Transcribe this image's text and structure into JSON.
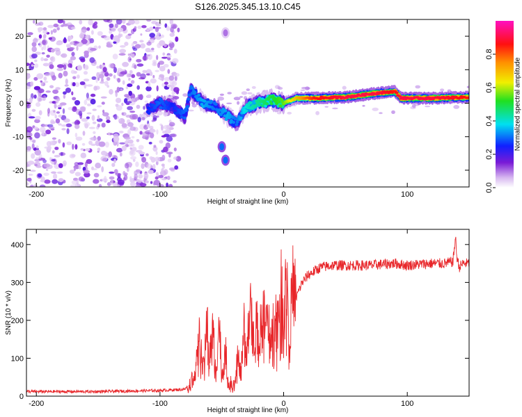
{
  "title": "S126.2025.345.13.10.C45",
  "colors": {
    "snr_line": "#e8262a",
    "axis": "#000000",
    "background": "#ffffff"
  },
  "chart_data": [
    {
      "type": "heatmap",
      "name": "spectrogram",
      "xlabel": "Height of straight line (km)",
      "ylabel": "Frequency (Hz)",
      "xlim": [
        -208,
        150
      ],
      "ylim": [
        -25,
        25
      ],
      "xticks": [
        -200,
        -100,
        0,
        100
      ],
      "yticks": [
        -20,
        -10,
        0,
        10,
        20
      ],
      "colorbar": {
        "label": "Normalized spectral amplitude",
        "range": [
          0,
          1
        ],
        "ticks": [
          0.0,
          0.2,
          0.4,
          0.6,
          0.8
        ],
        "tick_labels": [
          "0.0",
          "0.2",
          "0.4",
          "0.6",
          "0.8"
        ],
        "colormap": "rainbow (white-violet-blue-cyan-green-yellow-orange-red-pink)"
      },
      "ridge": [
        {
          "x": -110,
          "f": -2,
          "amp": 0.25
        },
        {
          "x": -100,
          "f": 0,
          "amp": 0.3
        },
        {
          "x": -90,
          "f": -1,
          "amp": 0.25
        },
        {
          "x": -80,
          "f": -4,
          "amp": 0.3
        },
        {
          "x": -75,
          "f": 4,
          "amp": 0.3
        },
        {
          "x": -65,
          "f": 0,
          "amp": 0.35
        },
        {
          "x": -55,
          "f": -1,
          "amp": 0.3
        },
        {
          "x": -45,
          "f": -4,
          "amp": 0.35
        },
        {
          "x": -38,
          "f": -6,
          "amp": 0.3
        },
        {
          "x": -30,
          "f": -1,
          "amp": 0.4
        },
        {
          "x": -20,
          "f": 0,
          "amp": 0.45
        },
        {
          "x": -10,
          "f": 1,
          "amp": 0.5
        },
        {
          "x": 0,
          "f": 0,
          "amp": 0.55
        },
        {
          "x": 10,
          "f": 1.5,
          "amp": 0.7
        },
        {
          "x": 25,
          "f": 1.5,
          "amp": 0.85
        },
        {
          "x": 50,
          "f": 1.8,
          "amp": 0.9
        },
        {
          "x": 75,
          "f": 3,
          "amp": 0.9
        },
        {
          "x": 90,
          "f": 3.5,
          "amp": 0.85
        },
        {
          "x": 95,
          "f": 1.5,
          "amp": 0.9
        },
        {
          "x": 120,
          "f": 1.5,
          "amp": 0.9
        },
        {
          "x": 150,
          "f": 1.8,
          "amp": 0.85
        }
      ],
      "isolated_blobs": [
        {
          "x": -50,
          "f": -13,
          "amp": 0.3
        },
        {
          "x": -47,
          "f": -17,
          "amp": 0.3
        },
        {
          "x": -47,
          "f": 21,
          "amp": 0.1
        }
      ],
      "noise_region_x": [
        -208,
        -85
      ]
    },
    {
      "type": "line",
      "name": "snr",
      "xlabel": "Height of straight line (km)",
      "ylabel": "SNR (10 * v/v)",
      "xlim": [
        -208,
        150
      ],
      "ylim": [
        0,
        440
      ],
      "xticks": [
        -200,
        -100,
        0,
        100
      ],
      "yticks": [
        0,
        100,
        200,
        300,
        400
      ],
      "series": [
        {
          "name": "SNR",
          "x": [
            -208,
            -150,
            -100,
            -80,
            -75,
            -70,
            -68,
            -65,
            -62,
            -60,
            -57,
            -55,
            -52,
            -50,
            -47,
            -45,
            -42,
            -40,
            -37,
            -35,
            -32,
            -30,
            -27,
            -25,
            -22,
            -20,
            -17,
            -15,
            -12,
            -10,
            -7,
            -5,
            -2,
            0,
            3,
            5,
            7,
            10,
            15,
            20,
            25,
            30,
            40,
            50,
            60,
            70,
            80,
            90,
            100,
            110,
            120,
            130,
            137,
            139,
            140,
            142,
            145,
            150
          ],
          "y": [
            12,
            12,
            15,
            18,
            35,
            90,
            160,
            60,
            210,
            100,
            180,
            60,
            200,
            50,
            120,
            40,
            30,
            25,
            100,
            60,
            180,
            120,
            230,
            160,
            200,
            120,
            250,
            180,
            230,
            150,
            230,
            200,
            280,
            260,
            300,
            150,
            300,
            260,
            300,
            320,
            330,
            340,
            345,
            345,
            345,
            345,
            348,
            350,
            345,
            348,
            350,
            350,
            355,
            420,
            370,
            340,
            350,
            350
          ]
        }
      ]
    }
  ]
}
